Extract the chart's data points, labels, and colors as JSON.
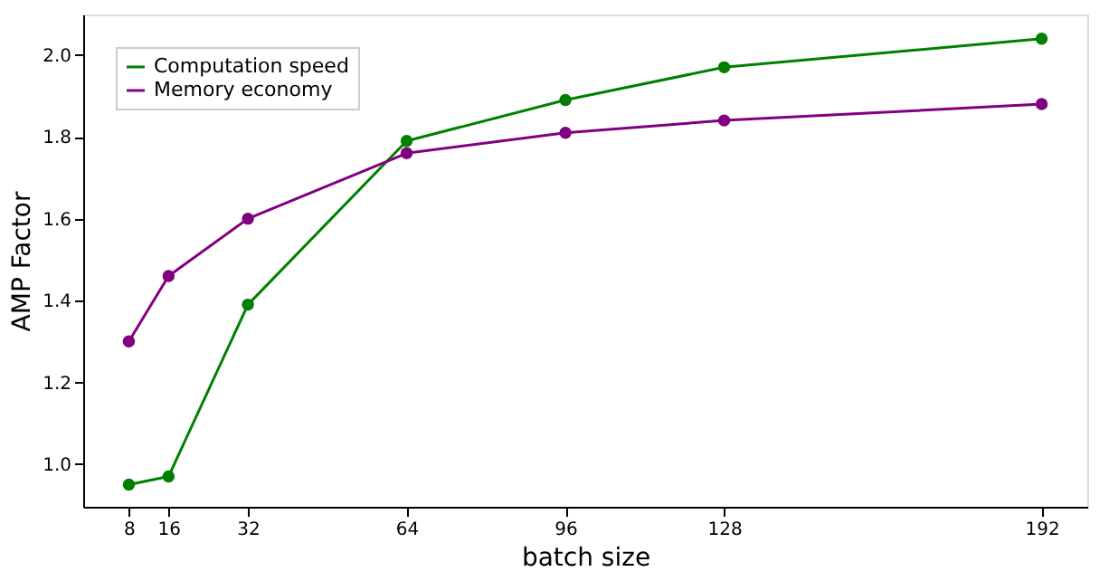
{
  "chart_data": {
    "type": "line",
    "xlabel": "batch size",
    "ylabel": "AMP Factor",
    "x": [
      8,
      16,
      32,
      64,
      96,
      128,
      192
    ],
    "series": [
      {
        "name": "Computation speed",
        "color": "#008000",
        "values": [
          0.95,
          0.97,
          1.39,
          1.79,
          1.89,
          1.97,
          2.04
        ]
      },
      {
        "name": "Memory economy",
        "color": "#800080",
        "values": [
          1.3,
          1.46,
          1.6,
          1.76,
          1.81,
          1.84,
          1.88
        ]
      }
    ],
    "xlim": [
      -1.2,
      201.2
    ],
    "ylim": [
      0.896,
      2.099
    ],
    "xticks": [
      8,
      16,
      32,
      64,
      96,
      128,
      192
    ],
    "yticks": [
      {
        "value": 1,
        "label": "1.0"
      },
      1.2,
      1.4,
      1.6,
      1.8,
      {
        "value": 2,
        "label": "2.0"
      }
    ],
    "grid": false,
    "legend": "top left",
    "marker": "circle",
    "line_style": "solid"
  }
}
